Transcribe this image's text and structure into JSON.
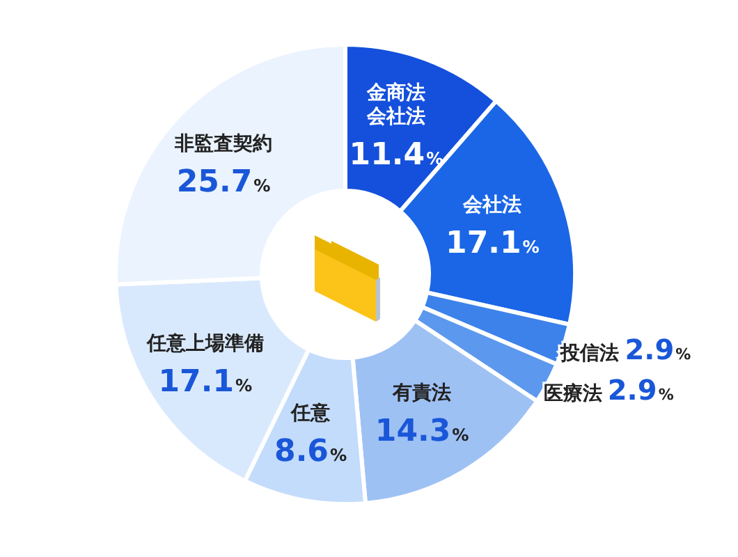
{
  "chart_data": {
    "type": "donut",
    "categories": [
      "金商法会社法",
      "会社法",
      "投信法",
      "医療法",
      "有責法",
      "任意",
      "任意上場準備",
      "非監査契約"
    ],
    "values": [
      11.4,
      17.1,
      2.9,
      2.9,
      14.3,
      8.6,
      17.1,
      25.7
    ],
    "value_labels": [
      "11.4%",
      "17.1%",
      "2.9%",
      "2.9%",
      "14.3%",
      "8.6%",
      "17.1%",
      "25.7%"
    ],
    "colors": [
      "#1450dc",
      "#1a66e6",
      "#3d82ea",
      "#5c98ee",
      "#9ec1f4",
      "#c3dcfb",
      "#d9e9fd",
      "#eaf3fe"
    ]
  }
}
